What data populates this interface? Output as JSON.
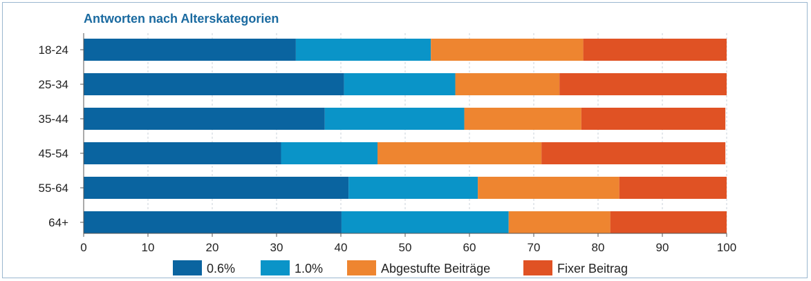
{
  "chart_data": {
    "type": "bar",
    "orientation": "horizontal",
    "stacked": true,
    "title": "Antworten nach Alterskategorien",
    "categories": [
      "18-24",
      "25-34",
      "35-44",
      "45-54",
      "55-64",
      "64+"
    ],
    "series": [
      {
        "name": "0.6%",
        "color": "#0a64a0",
        "values": [
          33,
          40.5,
          37.5,
          30.7,
          41.2,
          40.1
        ]
      },
      {
        "name": "1.0%",
        "color": "#0a94c8",
        "values": [
          21,
          17.3,
          21.7,
          15,
          20.1,
          26
        ]
      },
      {
        "name": "Abgestufte Beiträge",
        "color": "#ee8530",
        "values": [
          23.7,
          16.2,
          18.2,
          25.5,
          22,
          15.8
        ]
      },
      {
        "name": "Fixer Beitrag",
        "color": "#e05224",
        "values": [
          22.3,
          26,
          22.4,
          28.6,
          16.7,
          18.1
        ]
      }
    ],
    "xlim": [
      0,
      100
    ],
    "xticks": [
      0,
      10,
      20,
      30,
      40,
      50,
      60,
      70,
      80,
      90,
      100
    ],
    "grid": "vertical dashed",
    "legend_position": "bottom"
  }
}
